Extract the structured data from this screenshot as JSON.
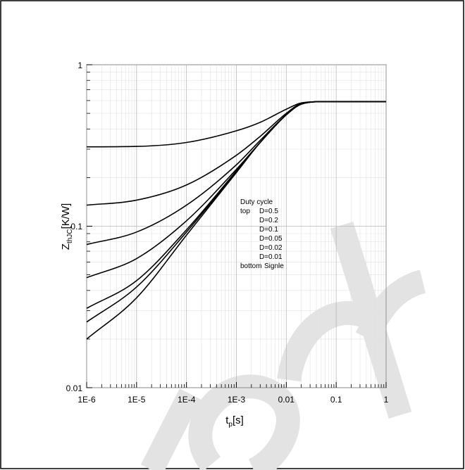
{
  "chart_data": {
    "type": "line",
    "xscale": "log",
    "yscale": "log",
    "xlim": [
      1e-06,
      1
    ],
    "ylim": [
      0.01,
      1
    ],
    "grid": true,
    "x_ticks": [
      "1E-6",
      "1E-5",
      "1E-4",
      "1E-3",
      "0.01",
      "0.1",
      "1"
    ],
    "y_ticks": [
      "1",
      "0.1",
      "0.01"
    ],
    "ylabel": {
      "main": "Z",
      "sub": "thJC",
      "rest": "[K/W]"
    },
    "xlabel": {
      "main": "t",
      "sub": "p",
      "rest": "[s]"
    },
    "legend": {
      "title": "Duty cycle",
      "rows": [
        {
          "prefix": "top",
          "label": "D=0.5"
        },
        {
          "prefix": "",
          "label": "D=0.2"
        },
        {
          "prefix": "",
          "label": "D=0.1"
        },
        {
          "prefix": "",
          "label": "D=0.05"
        },
        {
          "prefix": "",
          "label": "D=0.02"
        },
        {
          "prefix": "",
          "label": "D=0.01"
        },
        {
          "prefix": "bottom",
          "label": "Signle"
        }
      ]
    },
    "series": [
      {
        "name": "D=0.5",
        "x": [
          1e-06,
          1e-05,
          0.0001,
          0.001,
          0.003,
          0.01,
          0.02,
          0.05,
          0.1,
          1
        ],
        "y": [
          0.31,
          0.312,
          0.33,
          0.39,
          0.44,
          0.53,
          0.58,
          0.59,
          0.59,
          0.59
        ]
      },
      {
        "name": "D=0.2",
        "x": [
          1e-06,
          1e-05,
          0.0001,
          0.001,
          0.003,
          0.01,
          0.02,
          0.05,
          0.1,
          1
        ],
        "y": [
          0.135,
          0.145,
          0.18,
          0.275,
          0.36,
          0.5,
          0.575,
          0.59,
          0.59,
          0.59
        ]
      },
      {
        "name": "D=0.1",
        "x": [
          1e-06,
          1e-05,
          0.0001,
          0.001,
          0.003,
          0.01,
          0.02,
          0.05,
          0.1,
          1
        ],
        "y": [
          0.077,
          0.092,
          0.135,
          0.24,
          0.34,
          0.49,
          0.57,
          0.59,
          0.59,
          0.59
        ]
      },
      {
        "name": "D=0.05",
        "x": [
          1e-06,
          1e-05,
          0.0001,
          0.001,
          0.003,
          0.01,
          0.02,
          0.05,
          0.1,
          1
        ],
        "y": [
          0.048,
          0.063,
          0.108,
          0.225,
          0.33,
          0.49,
          0.57,
          0.59,
          0.59,
          0.59
        ]
      },
      {
        "name": "D=0.02",
        "x": [
          1e-06,
          1e-05,
          0.0001,
          0.001,
          0.003,
          0.01,
          0.02,
          0.05,
          0.1,
          1
        ],
        "y": [
          0.031,
          0.046,
          0.095,
          0.22,
          0.33,
          0.49,
          0.57,
          0.59,
          0.59,
          0.59
        ]
      },
      {
        "name": "D=0.01",
        "x": [
          1e-06,
          1e-05,
          0.0001,
          0.001,
          0.003,
          0.01,
          0.02,
          0.05,
          0.1,
          1
        ],
        "y": [
          0.0255,
          0.042,
          0.092,
          0.218,
          0.33,
          0.49,
          0.57,
          0.59,
          0.59,
          0.59
        ]
      },
      {
        "name": "Signle",
        "x": [
          1e-06,
          1e-05,
          0.0001,
          0.001,
          0.003,
          0.01,
          0.02,
          0.05,
          0.1,
          1
        ],
        "y": [
          0.02,
          0.036,
          0.088,
          0.215,
          0.33,
          0.49,
          0.57,
          0.59,
          0.59,
          0.59
        ]
      }
    ]
  },
  "watermark": {
    "text": "Preliminary",
    "color": "#e0e0e0"
  }
}
